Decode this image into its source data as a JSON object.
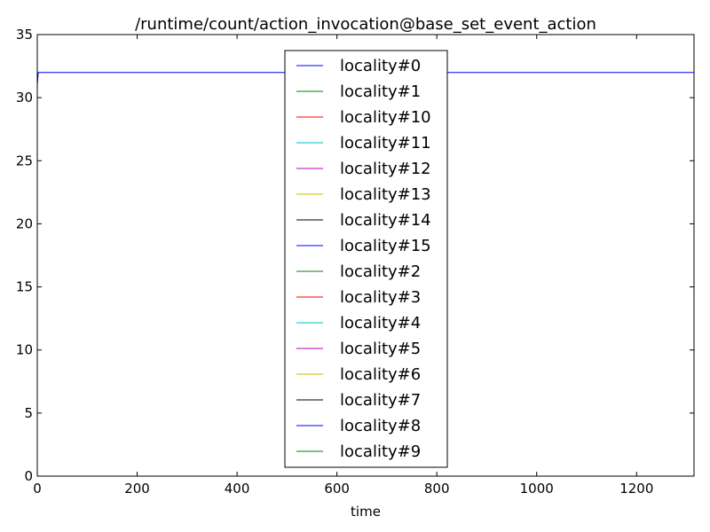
{
  "chart_data": {
    "type": "line",
    "title": "/runtime/count/action_invocation@base_set_event_action",
    "xlabel": "time",
    "ylabel": "",
    "xlim": [
      0,
      1315
    ],
    "ylim": [
      0,
      35
    ],
    "xticks": [
      0,
      200,
      400,
      600,
      800,
      1000,
      1200
    ],
    "yticks": [
      0,
      5,
      10,
      15,
      20,
      25,
      30,
      35
    ],
    "grid": false,
    "legend_position": "center",
    "series": [
      {
        "name": "locality#0",
        "color": "#0000ff",
        "x": [
          0,
          2,
          1315
        ],
        "y": [
          31,
          32,
          32
        ]
      },
      {
        "name": "locality#1",
        "color": "#008000",
        "x": [
          0,
          1315
        ],
        "y": [
          0,
          0
        ]
      },
      {
        "name": "locality#10",
        "color": "#ff0000",
        "x": [
          0,
          1315
        ],
        "y": [
          0,
          0
        ]
      },
      {
        "name": "locality#11",
        "color": "#00bfbf",
        "x": [
          0,
          1315
        ],
        "y": [
          0,
          0
        ]
      },
      {
        "name": "locality#12",
        "color": "#bf00bf",
        "x": [
          0,
          1315
        ],
        "y": [
          0,
          0
        ]
      },
      {
        "name": "locality#13",
        "color": "#bfbf00",
        "x": [
          0,
          1315
        ],
        "y": [
          0,
          0
        ]
      },
      {
        "name": "locality#14",
        "color": "#000000",
        "x": [
          0,
          1315
        ],
        "y": [
          0,
          0
        ]
      },
      {
        "name": "locality#15",
        "color": "#0000ff",
        "x": [
          0,
          1315
        ],
        "y": [
          0,
          0
        ]
      },
      {
        "name": "locality#2",
        "color": "#008000",
        "x": [
          0,
          1315
        ],
        "y": [
          0,
          0
        ]
      },
      {
        "name": "locality#3",
        "color": "#ff0000",
        "x": [
          0,
          1315
        ],
        "y": [
          0,
          0
        ]
      },
      {
        "name": "locality#4",
        "color": "#00bfbf",
        "x": [
          0,
          1315
        ],
        "y": [
          0,
          0
        ]
      },
      {
        "name": "locality#5",
        "color": "#bf00bf",
        "x": [
          0,
          1315
        ],
        "y": [
          0,
          0
        ]
      },
      {
        "name": "locality#6",
        "color": "#bfbf00",
        "x": [
          0,
          1315
        ],
        "y": [
          0,
          0
        ]
      },
      {
        "name": "locality#7",
        "color": "#000000",
        "x": [
          0,
          1315
        ],
        "y": [
          0,
          0
        ]
      },
      {
        "name": "locality#8",
        "color": "#0000ff",
        "x": [
          0,
          1315
        ],
        "y": [
          0,
          0
        ]
      },
      {
        "name": "locality#9",
        "color": "#008000",
        "x": [
          0,
          1315
        ],
        "y": [
          0,
          0
        ]
      }
    ]
  }
}
